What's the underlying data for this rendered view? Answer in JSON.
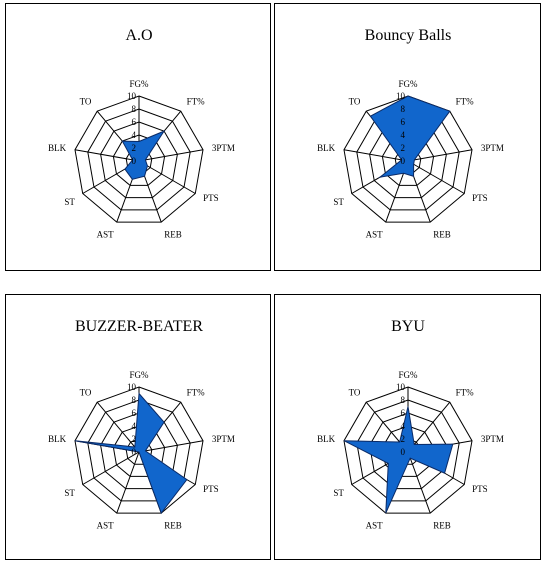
{
  "chart_data": [
    {
      "type": "radar",
      "title": "A.O",
      "axes": [
        "FG%",
        "FT%",
        "3PTM",
        "PTS",
        "REB",
        "AST",
        "ST",
        "BLK",
        "TO"
      ],
      "ticks": [
        "0",
        "2",
        "4",
        "6",
        "8",
        "10"
      ],
      "range": [
        0,
        10
      ],
      "grid": true,
      "series": [
        {
          "values": [
            3,
            6,
            1,
            1.5,
            2.5,
            3,
            2.5,
            1,
            4
          ],
          "color": "#1166cc"
        }
      ]
    },
    {
      "type": "radar",
      "title": "Bouncy Balls",
      "axes": [
        "FG%",
        "FT%",
        "3PTM",
        "PTS",
        "REB",
        "AST",
        "ST",
        "BLK",
        "TO"
      ],
      "ticks": [
        "0",
        "2",
        "4",
        "6",
        "8",
        "10"
      ],
      "range": [
        0,
        10
      ],
      "grid": true,
      "series": [
        {
          "values": [
            10,
            10,
            1,
            1,
            2.5,
            2,
            5,
            1,
            9
          ],
          "color": "#1166cc"
        }
      ]
    },
    {
      "type": "radar",
      "title": "BUZZER-BEATER",
      "axes": [
        "FG%",
        "FT%",
        "3PTM",
        "PTS",
        "REB",
        "AST",
        "ST",
        "BLK",
        "TO"
      ],
      "ticks": [
        "0",
        "2",
        "4",
        "6",
        "8",
        "10"
      ],
      "range": [
        0,
        10
      ],
      "grid": true,
      "series": [
        {
          "values": [
            9,
            6,
            1,
            8.5,
            10,
            0,
            0,
            10,
            1
          ],
          "color": "#1166cc"
        }
      ]
    },
    {
      "type": "radar",
      "title": "BYU",
      "axes": [
        "FG%",
        "FT%",
        "3PTM",
        "PTS",
        "REB",
        "AST",
        "ST",
        "BLK",
        "TO"
      ],
      "ticks": [
        "0",
        "2",
        "4",
        "6",
        "8",
        "10"
      ],
      "range": [
        0,
        10
      ],
      "grid": true,
      "series": [
        {
          "values": [
            7,
            1.5,
            7,
            6.5,
            1,
            10,
            3.5,
            10,
            2
          ],
          "color": "#1166cc"
        }
      ]
    }
  ]
}
